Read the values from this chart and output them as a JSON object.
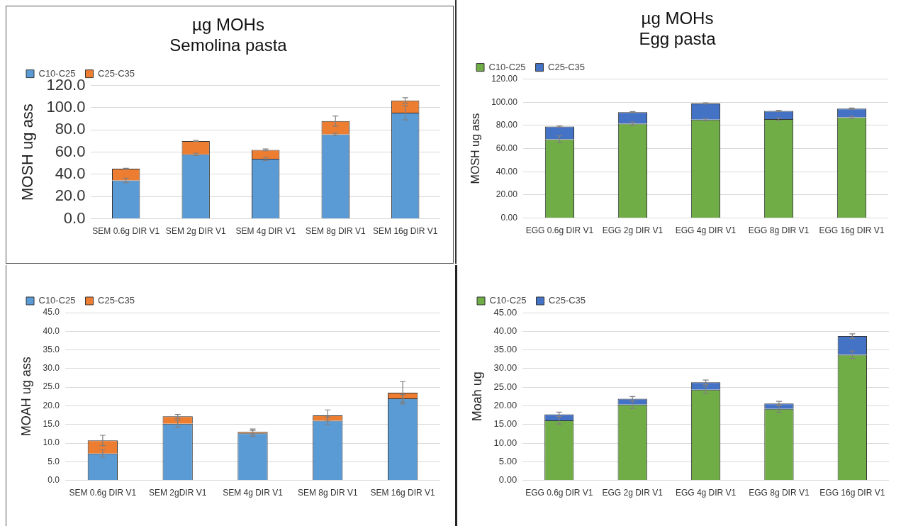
{
  "chart_data": [
    {
      "type": "bar",
      "title": "µg MOHs",
      "subtitle": "Semolina pasta",
      "ylabel": "MOSH ug ass",
      "categories": [
        "SEM 0.6g DIR V1",
        "SEM 2g DIR V1",
        "SEM 4g DIR V1",
        "SEM 8g DIR V1",
        "SEM 16g DIR V1"
      ],
      "stacked": true,
      "grid": "y",
      "legend": "top left",
      "series": [
        {
          "name": "C10-C25",
          "color": "#5b9bd5",
          "values": [
            34.5,
            58,
            54,
            76,
            95.5
          ],
          "errors": [
            2,
            1,
            1.5,
            1,
            6.5
          ]
        },
        {
          "name": "C25-C35",
          "color": "#ed7d31",
          "values": [
            10.5,
            12,
            8,
            12,
            11
          ],
          "errors": [
            0.5,
            0.5,
            0.8,
            4.5,
            2.5
          ]
        }
      ],
      "ylim": [
        0,
        120
      ],
      "yticks": [
        {
          "value": 0,
          "label": "0.0"
        },
        {
          "value": 20,
          "label": "20.0"
        },
        {
          "value": 40,
          "label": "40.0"
        },
        {
          "value": 60,
          "label": "60.0"
        },
        {
          "value": 80,
          "label": "80.0"
        },
        {
          "value": 100,
          "label": "100.0"
        },
        {
          "value": 120,
          "label": "120.0"
        }
      ]
    },
    {
      "type": "bar",
      "title": "µg MOHs",
      "subtitle": "Egg pasta",
      "ylabel": "MOSH ug ass",
      "categories": [
        "EGG 0.6g DIR V1",
        "EGG 2g DIR V1",
        "EGG 4g DIR V1",
        "EGG 8g DIR V1",
        "EGG 16g DIR V1"
      ],
      "stacked": true,
      "grid": "y",
      "legend": "top left",
      "series": [
        {
          "name": "C10-C25",
          "color": "#70ad47",
          "values": [
            68,
            81.5,
            85,
            85.5,
            87
          ],
          "errors": [
            3,
            1.5,
            1,
            1,
            1
          ]
        },
        {
          "name": "C25-C35",
          "color": "#4472c4",
          "values": [
            11,
            10,
            14,
            7,
            7.5
          ],
          "errors": [
            0.5,
            0.5,
            0.5,
            0.5,
            0.5
          ]
        }
      ],
      "ylim": [
        0,
        120
      ],
      "yticks": [
        {
          "value": 0,
          "label": "0.00"
        },
        {
          "value": 20,
          "label": "20.00"
        },
        {
          "value": 40,
          "label": "40.00"
        },
        {
          "value": 60,
          "label": "60.00"
        },
        {
          "value": 80,
          "label": "80.00"
        },
        {
          "value": 100,
          "label": "100.00"
        },
        {
          "value": 120,
          "label": "120.00"
        }
      ]
    },
    {
      "type": "bar",
      "ylabel": "MOAH ug ass",
      "categories": [
        "SEM 0.6g DIR V1",
        "SEM 2gDIR V1",
        "SEM 4g DIR V1",
        "SEM 8g DIR V1",
        "SEM 16g DIR V1"
      ],
      "stacked": true,
      "grid": "y",
      "legend": "top left",
      "series": [
        {
          "name": "C10-C25",
          "color": "#5b9bd5",
          "values": [
            7.2,
            15.2,
            12.6,
            16,
            22
          ],
          "errors": [
            1,
            1,
            0.8,
            1,
            1
          ]
        },
        {
          "name": "C25-C35",
          "color": "#ed7d31",
          "values": [
            3.5,
            2,
            0.4,
            1.4,
            1.5
          ],
          "errors": [
            1.4,
            0.5,
            0.8,
            1.5,
            3
          ]
        }
      ],
      "ylim": [
        0,
        45
      ],
      "yticks": [
        {
          "value": 0,
          "label": "0.0"
        },
        {
          "value": 5,
          "label": "5.0"
        },
        {
          "value": 10,
          "label": "10.0"
        },
        {
          "value": 15,
          "label": "15.0"
        },
        {
          "value": 20,
          "label": "20.0"
        },
        {
          "value": 25,
          "label": "25.0"
        },
        {
          "value": 30,
          "label": "30.0"
        },
        {
          "value": 35,
          "label": "35.0"
        },
        {
          "value": 40,
          "label": "40.0"
        },
        {
          "value": 45,
          "label": "45.0"
        }
      ]
    },
    {
      "type": "bar",
      "ylabel": "Moah ug",
      "categories": [
        "EGG 0.6g DIR V1",
        "EGG 2g DIR V1",
        "EGG 4g DIR V1",
        "EGG 8g DIR V1",
        "EGG 16g DIR V1"
      ],
      "stacked": true,
      "grid": "y",
      "legend": "top left",
      "series": [
        {
          "name": "C10-C25",
          "color": "#70ad47",
          "values": [
            16.1,
            20.3,
            24.3,
            19.2,
            33.7
          ],
          "errors": [
            1,
            1,
            1,
            1,
            1
          ]
        },
        {
          "name": "C25-C35",
          "color": "#4472c4",
          "values": [
            1.6,
            1.6,
            2,
            1.4,
            5
          ],
          "errors": [
            0.6,
            0.6,
            0.6,
            0.6,
            0.6
          ]
        }
      ],
      "ylim": [
        0,
        45
      ],
      "yticks": [
        {
          "value": 0,
          "label": "0.00"
        },
        {
          "value": 5,
          "label": "5.00"
        },
        {
          "value": 10,
          "label": "10.00"
        },
        {
          "value": 15,
          "label": "15.00"
        },
        {
          "value": 20,
          "label": "20.00"
        },
        {
          "value": 25,
          "label": "25.00"
        },
        {
          "value": 30,
          "label": "30.00"
        },
        {
          "value": 35,
          "label": "35.00"
        },
        {
          "value": 40,
          "label": "40.00"
        },
        {
          "value": 45,
          "label": "45.00"
        }
      ]
    }
  ]
}
